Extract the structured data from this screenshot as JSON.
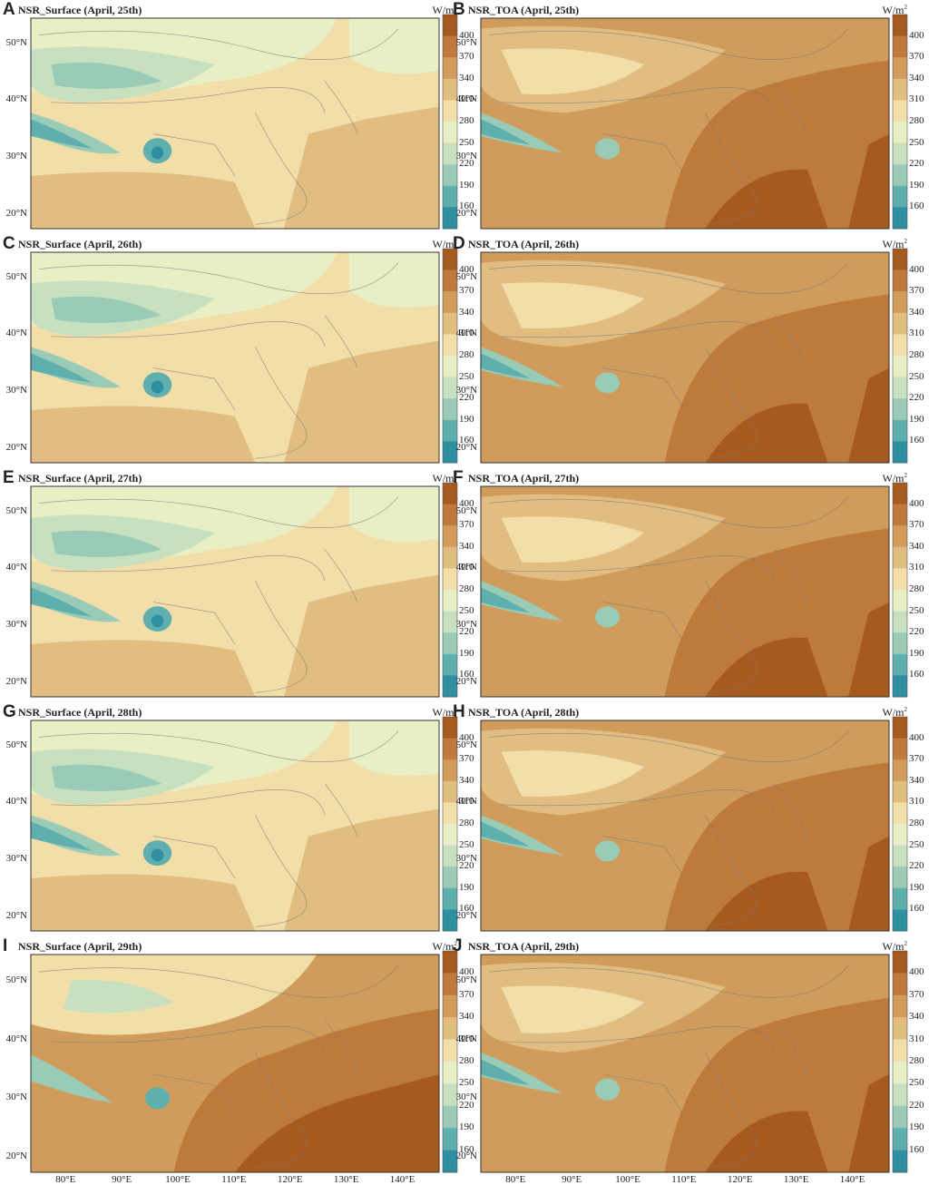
{
  "unit": "W/m",
  "unit_sup": "2",
  "colorbar": {
    "ticks": [
      "400",
      "370",
      "340",
      "310",
      "280",
      "250",
      "220",
      "190",
      "160"
    ],
    "colors": [
      "#a65a1f",
      "#bd7a3c",
      "#d09c5c",
      "#e1bd81",
      "#f2dea9",
      "#e9efc4",
      "#c6e0c0",
      "#99cbb7",
      "#5fafae",
      "#2f8ea0"
    ]
  },
  "lat_labels": [
    "50°N",
    "40°N",
    "30°N",
    "20°N"
  ],
  "lon_labels": [
    "80°E",
    "90°E",
    "100°E",
    "110°E",
    "120°E",
    "130°E",
    "140°E"
  ],
  "panels": [
    {
      "letter": "A",
      "title": "NSR_Surface (April, 25th)"
    },
    {
      "letter": "B",
      "title": "NSR_TOA (April, 25th)"
    },
    {
      "letter": "C",
      "title": "NSR_Surface (April, 26th)"
    },
    {
      "letter": "D",
      "title": "NSR_TOA (April, 26th)"
    },
    {
      "letter": "E",
      "title": "NSR_Surface (April, 27th)"
    },
    {
      "letter": "F",
      "title": "NSR_TOA (April, 27th)"
    },
    {
      "letter": "G",
      "title": "NSR_Surface (April, 28th)"
    },
    {
      "letter": "H",
      "title": "NSR_TOA (April, 28th)"
    },
    {
      "letter": "I",
      "title": "NSR_Surface (April, 29th)"
    },
    {
      "letter": "J",
      "title": "NSR_TOA (April, 29th)"
    }
  ]
}
